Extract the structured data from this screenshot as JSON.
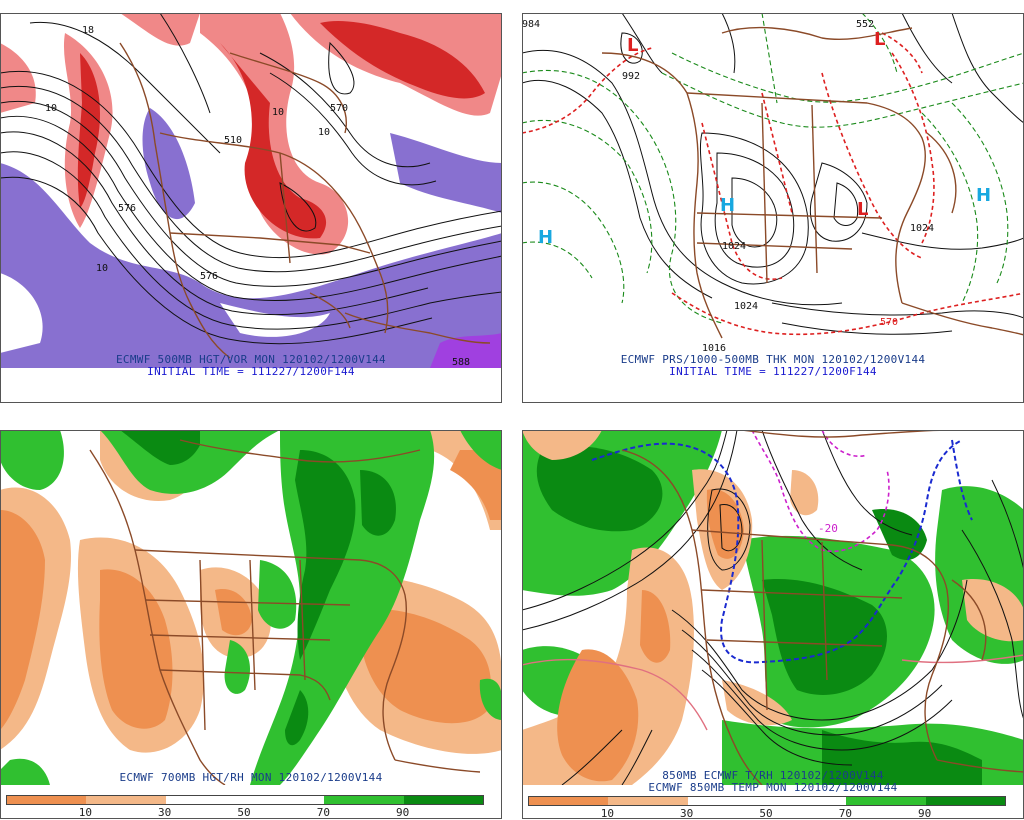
{
  "panels": {
    "vort": {
      "line1": "ECMWF 500MB HGT/VOR MON 120102/1200V144",
      "line2": "INITIAL TIME = 111227/1200F144",
      "contour_labels": [
        "576",
        "570",
        "510",
        "576",
        "588",
        "10",
        "10",
        "10",
        "18",
        "10"
      ]
    },
    "mslp": {
      "line1": "ECMWF PRS/1000-500MB THK MON 120102/1200V144",
      "line2": "INITIAL TIME = 111227/1200F144",
      "pressure_labels": [
        "984",
        "992",
        "1024",
        "1024",
        "1016",
        "1024",
        "570",
        "552"
      ],
      "centers": [
        "L",
        "L",
        "L",
        "H",
        "H",
        "H"
      ]
    },
    "rh700": {
      "line1": "ECMWF 700MB HGT/RH MON 120102/1200V144",
      "colorbar_ticks": [
        "10",
        "30",
        "50",
        "70",
        "90"
      ]
    },
    "t850": {
      "line1": "850MB ECMWF T/RH 120102/1200V144",
      "line2": "ECMWF 850MB TEMP MON 120102/1200V144",
      "contour_labels": [
        "-20"
      ],
      "colorbar_ticks": [
        "10",
        "30",
        "50",
        "70",
        "90"
      ]
    }
  },
  "colors": {
    "dry_dark": "#ee9050",
    "dry_light": "#f4b888",
    "moist_light": "#30c030",
    "moist_dark": "#0a8a12",
    "vort_red": "#d42828",
    "vort_light": "#f08888",
    "vort_purple": "#8870d0",
    "land": "#8b4a28"
  }
}
